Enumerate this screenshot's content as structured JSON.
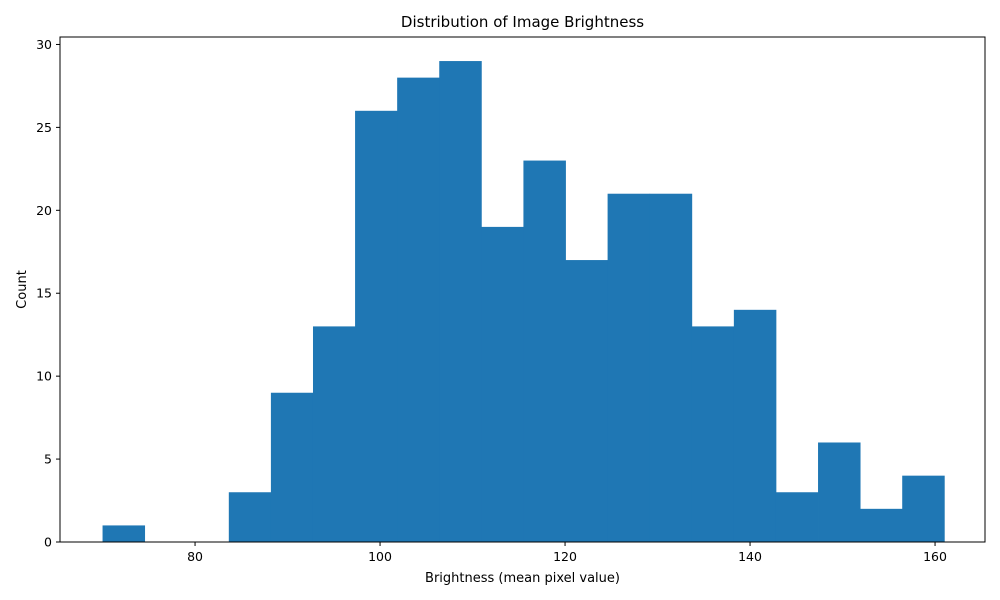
{
  "chart_data": {
    "type": "bar",
    "title": "Distribution of Image Brightness",
    "xlabel": "Brightness (mean pixel value)",
    "ylabel": "Count",
    "xlim": [
      65.4,
      165.4
    ],
    "ylim": [
      0,
      30.45
    ],
    "x_ticks": [
      80,
      100,
      120,
      140,
      160
    ],
    "y_ticks": [
      0,
      5,
      10,
      15,
      20,
      25,
      30
    ],
    "bin_edges": [
      70.0,
      74.55,
      79.1,
      83.65,
      88.2,
      92.75,
      97.3,
      101.85,
      106.4,
      110.95,
      115.5,
      120.05,
      124.6,
      129.15,
      133.7,
      138.25,
      142.8,
      147.35,
      151.9,
      156.45,
      161.0
    ],
    "values": [
      1,
      0,
      0,
      3,
      9,
      13,
      26,
      28,
      29,
      19,
      23,
      17,
      21,
      21,
      13,
      14,
      3,
      6,
      2,
      4
    ],
    "bar_color": "#1f77b4",
    "grid": false,
    "legend": "none"
  }
}
